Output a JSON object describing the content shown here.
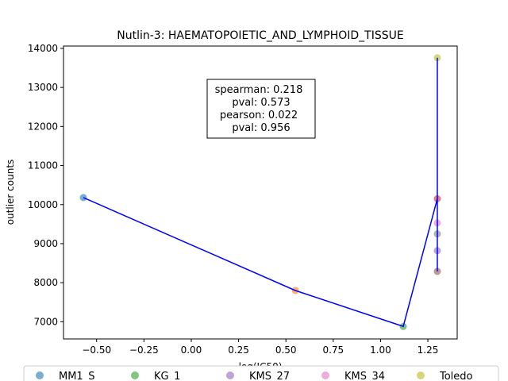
{
  "chart_data": {
    "type": "scatter",
    "title": "Nutlin-3: HAEMATOPOIETIC_AND_LYMPHOID_TISSUE",
    "xlabel": "log(IC50)",
    "ylabel": "outlier counts",
    "xlim": [
      -0.675,
      1.405
    ],
    "ylim": [
      6560,
      14060
    ],
    "xticks": [
      -0.5,
      -0.25,
      0.0,
      0.25,
      0.5,
      0.75,
      1.0,
      1.25
    ],
    "xtick_labels": [
      "−0.50",
      "−0.25",
      "0.00",
      "0.25",
      "0.50",
      "0.75",
      "1.00",
      "1.25"
    ],
    "yticks": [
      7000,
      8000,
      9000,
      10000,
      11000,
      12000,
      13000,
      14000
    ],
    "ytick_labels": [
      "7000",
      "8000",
      "9000",
      "10000",
      "11000",
      "12000",
      "13000",
      "14000"
    ],
    "grid": false,
    "points": [
      {
        "x": -0.57,
        "y": 10180,
        "color": "#1f77b4"
      },
      {
        "x": 0.55,
        "y": 7800,
        "color": "#ff7f0e"
      },
      {
        "x": 1.12,
        "y": 6880,
        "color": "#2ca02c"
      },
      {
        "x": 1.3,
        "y": 10150,
        "color": "#d62728"
      },
      {
        "x": 1.3,
        "y": 8820,
        "color": "#9467bd"
      },
      {
        "x": 1.3,
        "y": 8290,
        "color": "#8c564b"
      },
      {
        "x": 1.3,
        "y": 9530,
        "color": "#e377c2"
      },
      {
        "x": 1.3,
        "y": 9250,
        "color": "#7f7f7f"
      },
      {
        "x": 1.3,
        "y": 13760,
        "color": "#bcbd22"
      }
    ],
    "line": {
      "color": "#0000ff",
      "x": [
        -0.57,
        0.55,
        1.12,
        1.3,
        1.3,
        1.3
      ],
      "y": [
        10180,
        7800,
        6880,
        10150,
        8290,
        13760
      ]
    },
    "annotation": {
      "lines": [
        "spearman: 0.218",
        "pval: 0.573",
        "pearson: 0.022",
        "pval: 0.956"
      ]
    },
    "legend": {
      "placement": "bottom",
      "entries": [
        {
          "label": "MM1_S",
          "color": "#1f77b4"
        },
        {
          "label": "KG_1",
          "color": "#2ca02c"
        },
        {
          "label": "KMS_27",
          "color": "#9467bd"
        },
        {
          "label": "KMS_34",
          "color": "#e377c2"
        },
        {
          "label": "Toledo",
          "color": "#bcbd22"
        }
      ]
    }
  }
}
